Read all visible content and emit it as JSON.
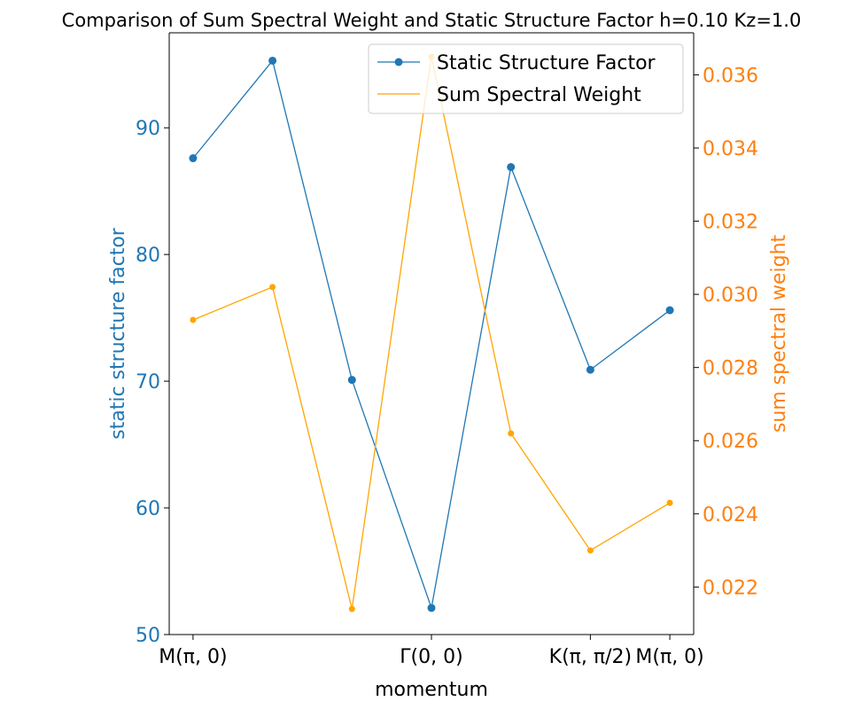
{
  "chart_data": {
    "type": "line",
    "title": "Comparison of Sum Spectral Weight and Static Structure Factor h=0.10 Kz=1.0",
    "xlabel": "momentum",
    "x": [
      0,
      1,
      2,
      3,
      4,
      5,
      6
    ],
    "xticks": [
      {
        "x": 0,
        "label": "M(π, 0)"
      },
      {
        "x": 3,
        "label": "Γ(0, 0)"
      },
      {
        "x": 5,
        "label": "K(π, π/2)"
      },
      {
        "x": 6,
        "label": "M(π, 0)"
      }
    ],
    "xlim": [
      -0.3,
      6.3
    ],
    "left_axis": {
      "label": "static structure factor",
      "color": "#1f77b4",
      "ylim": [
        50,
        97.5
      ],
      "ticks": [
        "50",
        "60",
        "70",
        "80",
        "90"
      ]
    },
    "right_axis": {
      "label": "sum spectral weight",
      "color": "#ff7f0e",
      "ylim": [
        0.0207,
        0.03715
      ],
      "ticks": [
        "0.022",
        "0.024",
        "0.026",
        "0.028",
        "0.030",
        "0.032",
        "0.034",
        "0.036"
      ]
    },
    "series": [
      {
        "name": "Static Structure Factor",
        "axis": "left",
        "color": "#1f77b4",
        "values": [
          87.6,
          95.3,
          70.1,
          52.1,
          86.9,
          70.9,
          75.6
        ]
      },
      {
        "name": "Sum Spectral Weight",
        "axis": "right",
        "color": "#ffa500",
        "values": [
          0.0293,
          0.0302,
          0.0214,
          0.0365,
          0.0262,
          0.023,
          0.0243
        ]
      }
    ],
    "legend": "top-right",
    "grid": false
  }
}
